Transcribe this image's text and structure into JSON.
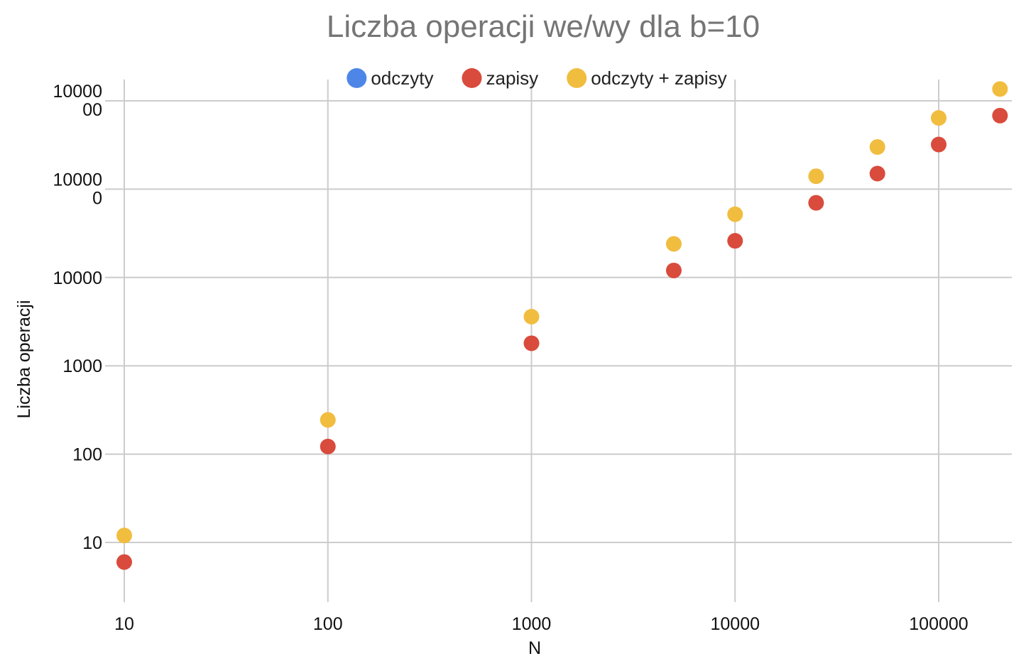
{
  "chart_data": {
    "type": "scatter",
    "title": "Liczba operacji we/wy dla b=10",
    "xlabel": "N",
    "ylabel": "Liczba operacji",
    "x_scale": "log",
    "y_scale": "log",
    "xlim": [
      10,
      200000
    ],
    "ylim": [
      2,
      2000000
    ],
    "x_ticks": [
      {
        "value": 10,
        "label": "10"
      },
      {
        "value": 100,
        "label": "100"
      },
      {
        "value": 1000,
        "label": "1000"
      },
      {
        "value": 10000,
        "label": "10000"
      },
      {
        "value": 100000,
        "label": "100000"
      }
    ],
    "y_ticks": [
      {
        "value": 10,
        "lines": [
          "10"
        ]
      },
      {
        "value": 100,
        "lines": [
          "100"
        ]
      },
      {
        "value": 1000,
        "lines": [
          "1000"
        ]
      },
      {
        "value": 10000,
        "lines": [
          "10000"
        ]
      },
      {
        "value": 100000,
        "lines": [
          "10000",
          "0"
        ]
      },
      {
        "value": 1000000,
        "lines": [
          "10000",
          "00"
        ]
      }
    ],
    "grid": true,
    "legend_position": "top",
    "series": [
      {
        "name": "odczyty",
        "color": "#4e86e8",
        "points": []
      },
      {
        "name": "zapisy",
        "color": "#d94b3c",
        "points": [
          {
            "x": 10,
            "y": 6
          },
          {
            "x": 100,
            "y": 122
          },
          {
            "x": 1000,
            "y": 1800
          },
          {
            "x": 5000,
            "y": 12000
          },
          {
            "x": 10000,
            "y": 26000
          },
          {
            "x": 25000,
            "y": 70000
          },
          {
            "x": 50000,
            "y": 150000
          },
          {
            "x": 100000,
            "y": 320000
          },
          {
            "x": 200000,
            "y": 680000
          }
        ]
      },
      {
        "name": "odczyty + zapisy",
        "color": "#f1bd3f",
        "points": [
          {
            "x": 10,
            "y": 12
          },
          {
            "x": 100,
            "y": 244
          },
          {
            "x": 1000,
            "y": 3600
          },
          {
            "x": 5000,
            "y": 24000
          },
          {
            "x": 10000,
            "y": 52000
          },
          {
            "x": 25000,
            "y": 140000
          },
          {
            "x": 50000,
            "y": 300000
          },
          {
            "x": 100000,
            "y": 640000
          },
          {
            "x": 200000,
            "y": 1360000
          }
        ]
      }
    ]
  }
}
